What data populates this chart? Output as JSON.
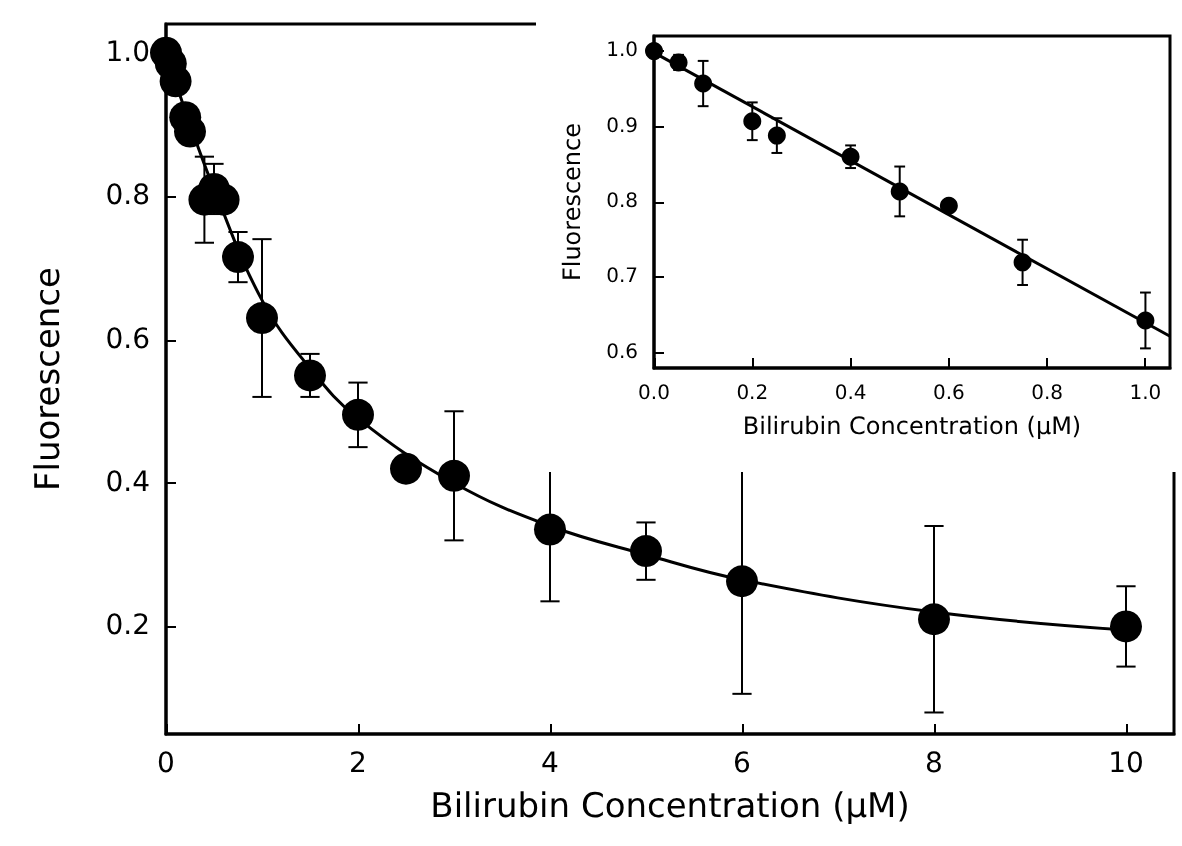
{
  "chart_data": [
    {
      "type": "scatter",
      "xlabel": "Bilirubin Concentration (μM)",
      "ylabel": "Fluorescence",
      "x": [
        0,
        0.05,
        0.1,
        0.2,
        0.25,
        0.4,
        0.5,
        0.6,
        0.75,
        1,
        1.5,
        2,
        2.5,
        3,
        4,
        5,
        6,
        8,
        10
      ],
      "series": [
        {
          "marker": "circle",
          "color": "#000000",
          "values": [
            1.0,
            0.985,
            0.96,
            0.91,
            0.89,
            0.795,
            0.81,
            0.795,
            0.715,
            0.63,
            0.55,
            0.495,
            0.42,
            0.41,
            0.335,
            0.305,
            0.263,
            0.21,
            0.2
          ],
          "errors": [
            null,
            null,
            null,
            null,
            null,
            0.06,
            0.035,
            null,
            0.035,
            0.11,
            0.03,
            0.045,
            null,
            0.09,
            0.1,
            0.04,
            0.157,
            0.13,
            0.056
          ]
        },
        {
          "type": "line",
          "marker": "none",
          "color": "#000000",
          "x": [
            0,
            0.25,
            0.5,
            1,
            1.5,
            2,
            3,
            4,
            5,
            6,
            8,
            10
          ],
          "values": [
            1.0,
            0.9,
            0.81,
            0.655,
            0.56,
            0.49,
            0.4,
            0.34,
            0.3,
            0.265,
            0.22,
            0.195
          ]
        }
      ],
      "xlim": [
        0,
        10.5
      ],
      "ylim": [
        0.05,
        1.04
      ],
      "xticks": [
        0,
        2,
        4,
        6,
        8,
        10
      ],
      "yticks": [
        0.2,
        0.4,
        0.6,
        0.8,
        {
          "value": 1,
          "label": "1.0"
        }
      ],
      "grid": false
    },
    {
      "type": "scatter",
      "xlabel": "Bilirubin Concentration (μM)",
      "ylabel": "Fluorescence",
      "x": [
        0,
        0.05,
        0.1,
        0.2,
        0.25,
        0.4,
        0.5,
        0.6,
        0.75,
        1.0
      ],
      "series": [
        {
          "marker": "circle",
          "color": "#000000",
          "values": [
            1.0,
            0.985,
            0.957,
            0.907,
            0.888,
            0.86,
            0.814,
            0.795,
            0.72,
            0.643
          ],
          "errors": [
            null,
            0.01,
            0.03,
            0.025,
            0.023,
            0.015,
            0.033,
            null,
            0.03,
            0.037
          ]
        },
        {
          "type": "line",
          "marker": "none",
          "color": "#000000",
          "x": [
            0,
            1.05
          ],
          "values": [
            0.998,
            0.622
          ]
        }
      ],
      "xlim": [
        0,
        1.05
      ],
      "ylim": [
        0.58,
        1.02
      ],
      "xticks": [
        {
          "value": 0,
          "label": "0.0"
        },
        0.2,
        0.4,
        0.6,
        0.8,
        {
          "value": 1,
          "label": "1.0"
        }
      ],
      "yticks": [
        0.6,
        0.7,
        0.8,
        0.9,
        {
          "value": 1,
          "label": "1.0"
        }
      ],
      "grid": false
    }
  ]
}
